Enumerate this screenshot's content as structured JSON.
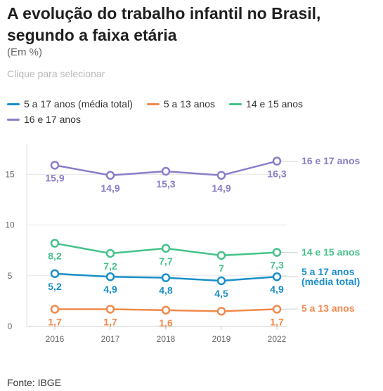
{
  "title": "A evolução do trabalho infantil no Brasil, segundo a faixa etária",
  "subtitle": "(Em %)",
  "hint": "Clique para selecionar",
  "source": "Fonte: IBGE",
  "chart_data": {
    "type": "line",
    "title": "A evolução do trabalho infantil no Brasil, segundo a faixa etária",
    "x": [
      "2016",
      "2017",
      "2018",
      "2019",
      "2022"
    ],
    "ylim": [
      0,
      18
    ],
    "y_ticks": [
      "0",
      "5",
      "10",
      "15"
    ],
    "grid": true,
    "legend_position": "top",
    "series": [
      {
        "name": "5 a 17 anos (média total)",
        "end_label": [
          "5 a 17 anos",
          "(média total)"
        ],
        "color": "#1a8fc9",
        "values": [
          5.2,
          4.9,
          4.8,
          4.5,
          4.9
        ],
        "labels": [
          "5,2",
          "4,9",
          "4,8",
          "4,5",
          "4,9"
        ]
      },
      {
        "name": "5 a 13 anos",
        "end_label": [
          "5 a 13 anos"
        ],
        "color": "#f08a4b",
        "values": [
          1.7,
          1.7,
          1.6,
          1.5,
          1.7
        ],
        "labels": [
          "1,7",
          "1,7",
          "1,6",
          "",
          "1,7"
        ]
      },
      {
        "name": "14 e 15 anos",
        "end_label": [
          "14 e 15 anos"
        ],
        "color": "#45c28a",
        "values": [
          8.2,
          7.2,
          7.7,
          7.0,
          7.3
        ],
        "labels": [
          "8,2",
          "7,2",
          "7,7",
          "7",
          "7,3"
        ]
      },
      {
        "name": "16 e 17 anos",
        "end_label": [
          "16 e 17 anos"
        ],
        "color": "#8c7cc8",
        "values": [
          15.9,
          14.9,
          15.3,
          14.9,
          16.3
        ],
        "labels": [
          "15,9",
          "14,9",
          "15,3",
          "14,9",
          "16,3"
        ]
      }
    ]
  }
}
